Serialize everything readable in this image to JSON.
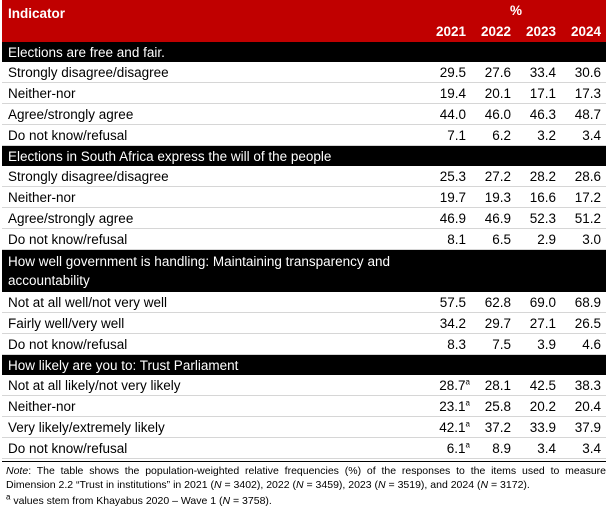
{
  "header": {
    "indicator_label": "Indicator",
    "percent_label": "%",
    "years": [
      "2021",
      "2022",
      "2023",
      "2024"
    ]
  },
  "sections": [
    {
      "title": "Elections are free and fair.",
      "rows": [
        {
          "label": "Strongly disagree/disagree",
          "values": [
            "29.5",
            "27.6",
            "33.4",
            "30.6"
          ]
        },
        {
          "label": "Neither-nor",
          "values": [
            "19.4",
            "20.1",
            "17.1",
            "17.3"
          ]
        },
        {
          "label": "Agree/strongly agree",
          "values": [
            "44.0",
            "46.0",
            "46.3",
            "48.7"
          ]
        },
        {
          "label": "Do not know/refusal",
          "values": [
            "7.1",
            "6.2",
            "3.2",
            "3.4"
          ]
        }
      ]
    },
    {
      "title": "Elections in South Africa express the will of the people",
      "rows": [
        {
          "label": "Strongly disagree/disagree",
          "values": [
            "25.3",
            "27.2",
            "28.2",
            "28.6"
          ]
        },
        {
          "label": "Neither-nor",
          "values": [
            "19.7",
            "19.3",
            "16.6",
            "17.2"
          ]
        },
        {
          "label": "Agree/strongly agree",
          "values": [
            "46.9",
            "46.9",
            "52.3",
            "51.2"
          ]
        },
        {
          "label": "Do not know/refusal",
          "values": [
            "8.1",
            "6.5",
            "2.9",
            "3.0"
          ]
        }
      ]
    },
    {
      "title": "How well government is handling: Maintaining transparency and accountability",
      "rows": [
        {
          "label": "Not at all well/not very well",
          "values": [
            "57.5",
            "62.8",
            "69.0",
            "68.9"
          ]
        },
        {
          "label": "Fairly well/very well",
          "values": [
            "34.2",
            "29.7",
            "27.1",
            "26.5"
          ]
        },
        {
          "label": "Do not know/refusal",
          "values": [
            "8.3",
            "7.5",
            "3.9",
            "4.6"
          ]
        }
      ]
    },
    {
      "title": "How likely are you to: Trust Parliament",
      "rows": [
        {
          "label": "Not at all likely/not very likely",
          "values": [
            "28.7",
            "28.1",
            "42.5",
            "38.3"
          ],
          "sup_first": "a"
        },
        {
          "label": "Neither-nor",
          "values": [
            "23.1",
            "25.8",
            "20.2",
            "20.4"
          ],
          "sup_first": "a"
        },
        {
          "label": "Very likely/extremely likely",
          "values": [
            "42.1",
            "37.2",
            "33.9",
            "37.9"
          ],
          "sup_first": "a"
        },
        {
          "label": "Do not know/refusal",
          "values": [
            "6.1",
            "8.9",
            "3.4",
            "3.4"
          ],
          "sup_first": "a"
        }
      ]
    }
  ],
  "note": {
    "lead": "Note",
    "t1": ": The table shows the population-weighted relative frequencies (%) of the responses to the items used to measure Dimension 2.2 “Trust in institutions” in 2021 (",
    "n": "N",
    "t2": " = 3402), 2022 (",
    "t3": " = 3459), 2023 (",
    "t4": " = 3519), and 2024 (",
    "t5": " = 3172)."
  },
  "footnote": {
    "sup": "a",
    "t1": " values stem from Khayabus 2020 – Wave 1 (",
    "n": "N",
    "t2": " = 3758)."
  }
}
